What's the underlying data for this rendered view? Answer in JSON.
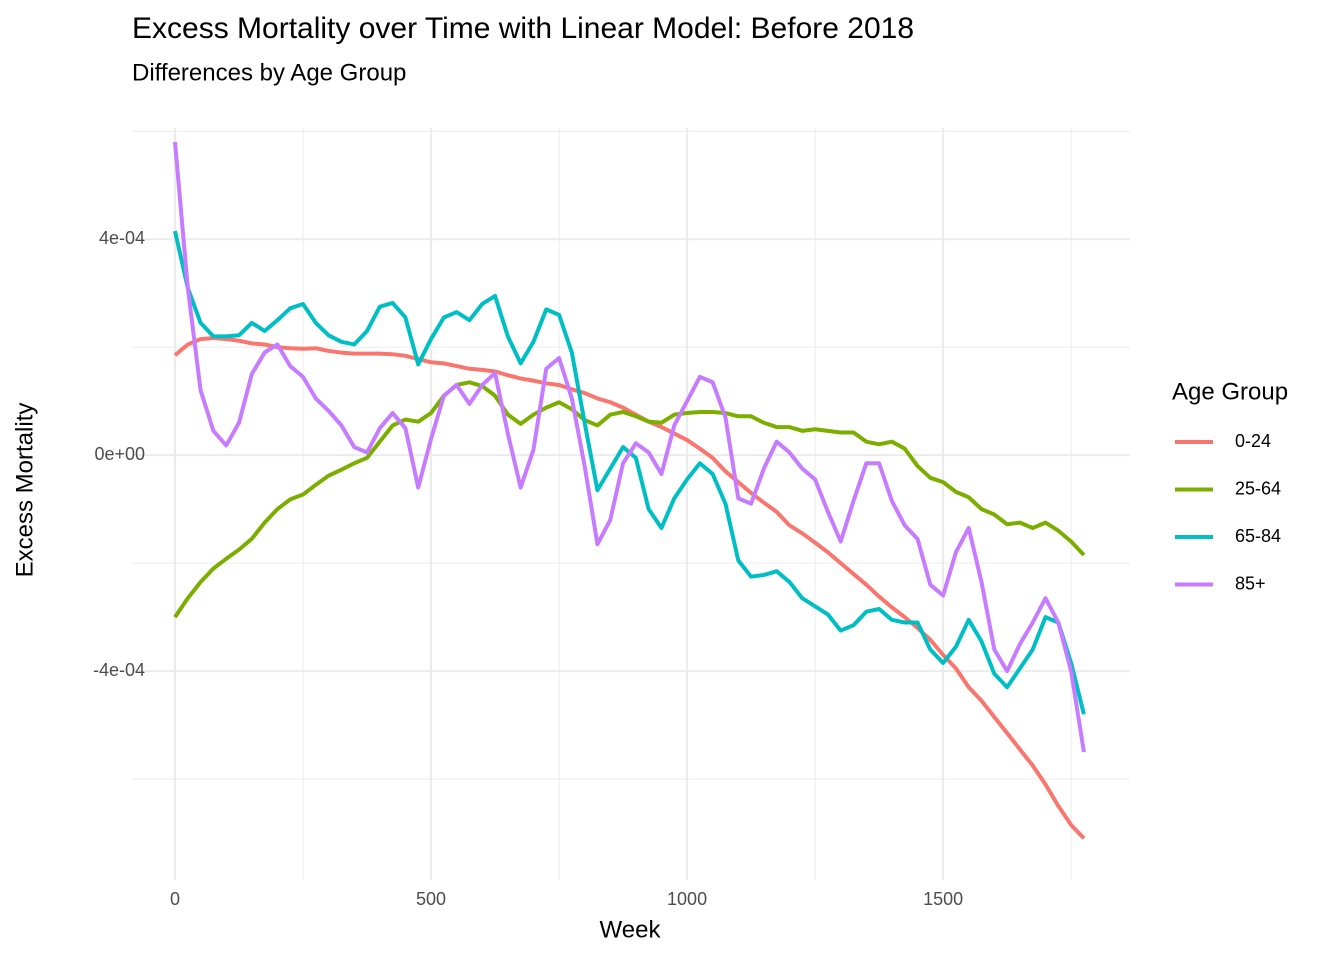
{
  "chart_data": {
    "type": "line",
    "title": "Excess Mortality over Time with Linear Model: Before 2018",
    "subtitle": "Differences by Age Group",
    "x_label": "Week",
    "y_label": "Excess Mortality",
    "legend_title": "Age Group",
    "legend": "right",
    "x": [
      0,
      25,
      50,
      75,
      100,
      125,
      150,
      175,
      200,
      225,
      250,
      275,
      300,
      325,
      350,
      375,
      400,
      425,
      450,
      475,
      500,
      525,
      550,
      575,
      600,
      625,
      650,
      675,
      700,
      725,
      750,
      775,
      800,
      825,
      850,
      875,
      900,
      925,
      950,
      975,
      1000,
      1025,
      1050,
      1075,
      1100,
      1125,
      1150,
      1175,
      1200,
      1225,
      1250,
      1275,
      1300,
      1325,
      1350,
      1375,
      1400,
      1425,
      1450,
      1475,
      1500,
      1525,
      1550,
      1575,
      1600,
      1625,
      1650,
      1675,
      1700,
      1725,
      1750,
      1775
    ],
    "series": [
      {
        "name": "0-24",
        "color": "#F8766D",
        "values": [
          0.000185,
          0.000205,
          0.000215,
          0.000217,
          0.000215,
          0.000212,
          0.000207,
          0.000205,
          0.0002,
          0.000198,
          0.000197,
          0.000198,
          0.000193,
          0.00019,
          0.000188,
          0.000188,
          0.000188,
          0.000187,
          0.000184,
          0.000178,
          0.000172,
          0.00017,
          0.000165,
          0.00016,
          0.000158,
          0.000155,
          0.000148,
          0.000142,
          0.000138,
          0.000133,
          0.00013,
          0.000122,
          0.000115,
          0.000105,
          9.8e-05,
          8.8e-05,
          7.5e-05,
          6.2e-05,
          5.2e-05,
          4e-05,
          2.8e-05,
          1.2e-05,
          -5e-06,
          -3e-05,
          -5e-05,
          -7e-05,
          -8.8e-05,
          -0.000105,
          -0.00013,
          -0.000145,
          -0.000162,
          -0.00018,
          -0.0002,
          -0.00022,
          -0.00024,
          -0.000262,
          -0.000282,
          -0.0003,
          -0.00032,
          -0.000342,
          -0.00037,
          -0.000395,
          -0.00043,
          -0.000455,
          -0.000485,
          -0.000515,
          -0.000545,
          -0.000575,
          -0.00061,
          -0.00065,
          -0.000685,
          -0.00071
        ]
      },
      {
        "name": "25-64",
        "color": "#7CAE00",
        "values": [
          -0.0003,
          -0.000265,
          -0.000235,
          -0.00021,
          -0.000192,
          -0.000175,
          -0.000155,
          -0.000125,
          -0.0001,
          -8.2e-05,
          -7.3e-05,
          -5.5e-05,
          -3.8e-05,
          -2.7e-05,
          -1.5e-05,
          -5e-06,
          2.5e-05,
          5.5e-05,
          6.6e-05,
          6.2e-05,
          7.8e-05,
          0.00011,
          0.00013,
          0.000135,
          0.000128,
          0.00011,
          7.5e-05,
          5.8e-05,
          7.5e-05,
          8.8e-05,
          9.8e-05,
          8.5e-05,
          6.5e-05,
          5.5e-05,
          7.5e-05,
          8e-05,
          7.2e-05,
          6.2e-05,
          6e-05,
          7.5e-05,
          7.8e-05,
          8e-05,
          8e-05,
          7.8e-05,
          7.2e-05,
          7.2e-05,
          6e-05,
          5.2e-05,
          5.2e-05,
          4.5e-05,
          4.8e-05,
          4.5e-05,
          4.2e-05,
          4.2e-05,
          2.5e-05,
          2e-05,
          2.5e-05,
          1.2e-05,
          -2e-05,
          -4.2e-05,
          -5e-05,
          -6.8e-05,
          -7.8e-05,
          -0.0001,
          -0.00011,
          -0.000128,
          -0.000125,
          -0.000135,
          -0.000125,
          -0.00014,
          -0.00016,
          -0.000185
        ]
      },
      {
        "name": "65-84",
        "color": "#00BFC4",
        "values": [
          0.000415,
          0.00031,
          0.000245,
          0.00022,
          0.00022,
          0.000222,
          0.000245,
          0.00023,
          0.00025,
          0.000272,
          0.00028,
          0.000245,
          0.000222,
          0.00021,
          0.000205,
          0.00023,
          0.000275,
          0.000282,
          0.000255,
          0.000168,
          0.000215,
          0.000255,
          0.000265,
          0.00025,
          0.00028,
          0.000295,
          0.00022,
          0.00017,
          0.00021,
          0.00027,
          0.00026,
          0.00019,
          6e-05,
          -6.5e-05,
          -2.5e-05,
          1.5e-05,
          -5e-06,
          -0.0001,
          -0.000135,
          -8e-05,
          -4.5e-05,
          -1.5e-05,
          -3.5e-05,
          -9e-05,
          -0.000195,
          -0.000225,
          -0.000222,
          -0.000215,
          -0.000235,
          -0.000265,
          -0.00028,
          -0.000295,
          -0.000325,
          -0.000315,
          -0.00029,
          -0.000285,
          -0.000305,
          -0.00031,
          -0.00031,
          -0.00036,
          -0.000385,
          -0.000355,
          -0.000305,
          -0.000345,
          -0.000405,
          -0.00043,
          -0.000395,
          -0.00036,
          -0.0003,
          -0.00031,
          -0.000385,
          -0.00048
        ]
      },
      {
        "name": "85+",
        "color": "#C77CFF",
        "values": [
          0.00058,
          0.00031,
          0.00012,
          4.5e-05,
          1.8e-05,
          6e-05,
          0.00015,
          0.00019,
          0.000205,
          0.000165,
          0.000145,
          0.000105,
          8.2e-05,
          5.5e-05,
          1.5e-05,
          5e-06,
          5e-05,
          7.8e-05,
          5e-05,
          -6e-05,
          3e-05,
          0.00011,
          0.00013,
          9.5e-05,
          0.00013,
          0.000152,
          4e-05,
          -6e-05,
          1e-05,
          0.00016,
          0.00018,
          0.000105,
          -2e-05,
          -0.000165,
          -0.00012,
          -1.5e-05,
          2.2e-05,
          5e-06,
          -3.5e-05,
          5.5e-05,
          0.0001,
          0.000145,
          0.000135,
          7e-05,
          -8e-05,
          -9e-05,
          -2.5e-05,
          2.5e-05,
          5e-06,
          -2.5e-05,
          -4.5e-05,
          -0.000105,
          -0.00016,
          -8.5e-05,
          -1.5e-05,
          -1.5e-05,
          -8.5e-05,
          -0.00013,
          -0.000155,
          -0.00024,
          -0.00026,
          -0.00018,
          -0.000135,
          -0.000235,
          -0.00036,
          -0.0004,
          -0.00035,
          -0.00031,
          -0.000265,
          -0.00031,
          -0.0004,
          -0.00055
        ]
      }
    ],
    "xlim": [
      -82,
      1865
    ],
    "xticks": [
      0,
      500,
      1000,
      1500
    ],
    "xminor": [
      250,
      750,
      1250,
      1750
    ],
    "ylim": [
      -0.000787,
      0.000606
    ],
    "yticks": [
      {
        "value": -0.0004,
        "label": "-4e-04"
      },
      {
        "value": 0,
        "label": "0e+00"
      },
      {
        "value": 0.0004,
        "label": "4e-04"
      }
    ],
    "yminor": [
      -0.0006,
      -0.0002,
      0.0002,
      0.0006
    ],
    "grid": true
  }
}
